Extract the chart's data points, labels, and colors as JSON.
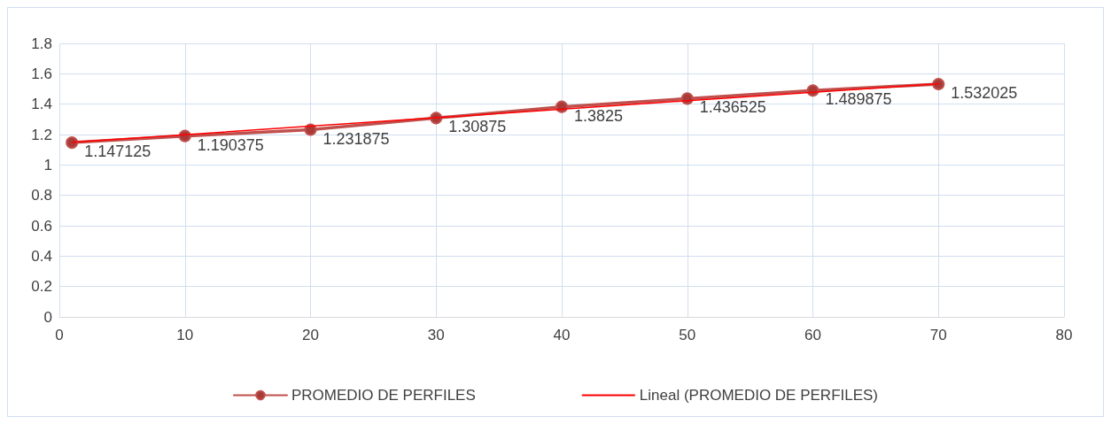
{
  "chart_data": {
    "type": "line",
    "x": [
      1,
      10,
      20,
      30,
      40,
      50,
      60,
      70
    ],
    "series": [
      {
        "name": "PROMEDIO DE PERFILES",
        "color": "#c0504d",
        "values": [
          1.147125,
          1.190375,
          1.231875,
          1.30875,
          1.3825,
          1.436525,
          1.489875,
          1.532025
        ],
        "marker": "circle",
        "data_labels": true
      },
      {
        "name": "Lineal (PROMEDIO DE PERFILES)",
        "type": "line",
        "color": "#ff0000",
        "x": [
          1,
          70
        ],
        "values": [
          1.149,
          1.534
        ],
        "marker": "none"
      }
    ],
    "xlim": [
      0,
      80
    ],
    "xticks": [
      0,
      10,
      20,
      30,
      40,
      50,
      60,
      70,
      80
    ],
    "ylim": [
      0,
      1.8
    ],
    "yticks": [
      0,
      0.2,
      0.4,
      0.6,
      0.8,
      1,
      1.2,
      1.4,
      1.6,
      1.8
    ],
    "grid": true,
    "legend": "bottom",
    "line_style": "solid"
  }
}
